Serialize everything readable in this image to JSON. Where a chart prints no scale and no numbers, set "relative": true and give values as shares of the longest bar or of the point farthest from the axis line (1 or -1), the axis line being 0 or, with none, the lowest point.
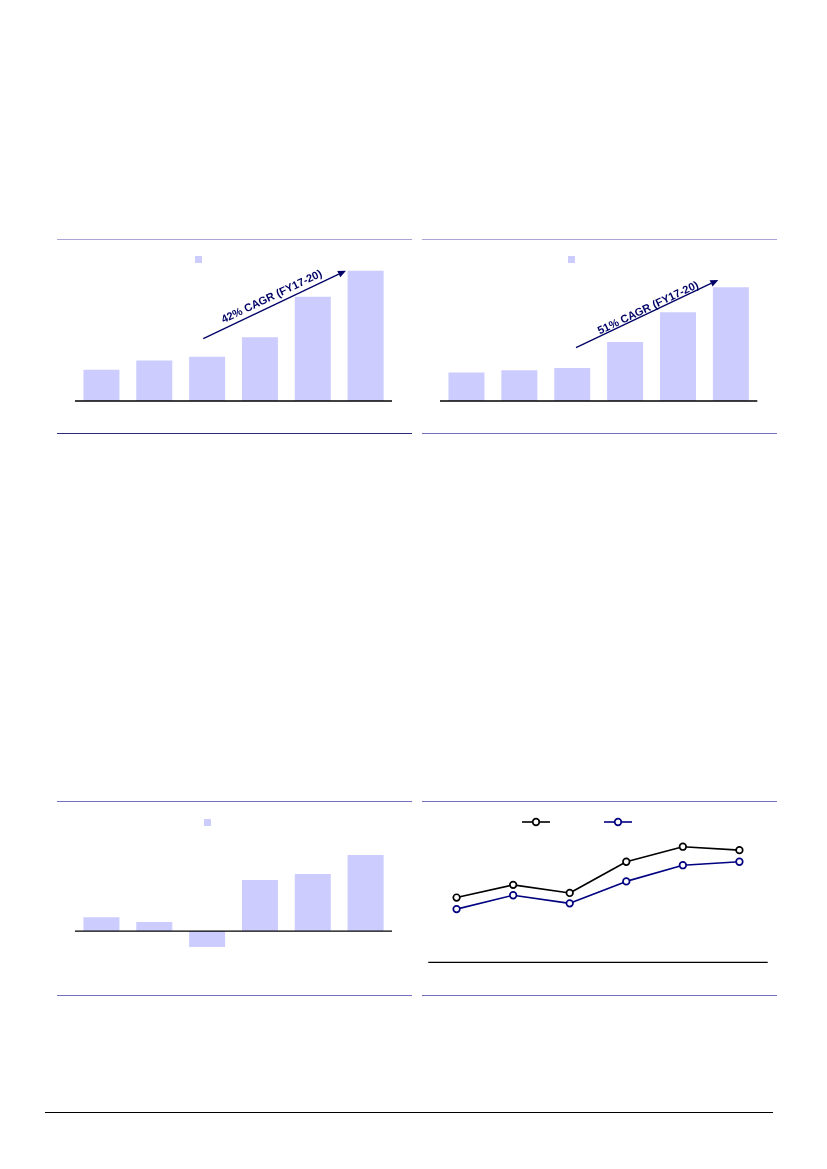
{
  "chart_data": [
    {
      "type": "bar",
      "relative": true,
      "categories": [
        null,
        null,
        null,
        null,
        null,
        null
      ],
      "values": [
        0.24,
        0.31,
        0.34,
        0.49,
        0.8,
        1
      ],
      "color": "#ccccff",
      "tick_labels": false,
      "annotations": [
        "42% CAGR (FY17-20)"
      ]
    },
    {
      "type": "bar",
      "relative": true,
      "categories": [
        null,
        null,
        null,
        null,
        null,
        null
      ],
      "values": [
        0.25,
        0.27,
        0.29,
        0.52,
        0.78,
        1
      ],
      "color": "#ccccff",
      "tick_labels": false,
      "annotations": [
        "51% CAGR (FY17-20)"
      ]
    },
    {
      "type": "bar",
      "relative": true,
      "categories": [
        null,
        null,
        null,
        null,
        null,
        null
      ],
      "values": [
        0.18,
        0.12,
        -0.21,
        0.67,
        0.75,
        1
      ],
      "color": "#ccccff",
      "tick_labels": false
    },
    {
      "type": "line",
      "relative": true,
      "categories": [
        null,
        null,
        null,
        null,
        null,
        null
      ],
      "series": [
        {
          "color": "#000000",
          "values": [
            0.56,
            0.67,
            0.6,
            0.87,
            1,
            0.97
          ]
        },
        {
          "color": "#000080",
          "values": [
            0.46,
            0.58,
            0.51,
            0.7,
            0.84,
            0.87
          ]
        }
      ],
      "marker": "circle",
      "tick_labels": false
    }
  ]
}
